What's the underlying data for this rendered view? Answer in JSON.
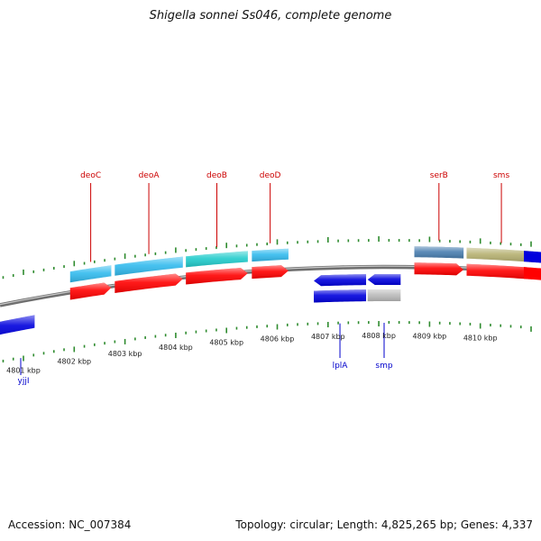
{
  "title": "Shigella sonnei Ss046, complete genome",
  "footer": {
    "accession": "Accession: NC_007384",
    "stats": "Topology: circular; Length: 4,825,265 bp; Genes: 4,337"
  },
  "colors": {
    "backbone": "#8c8c8c",
    "tick": "#2e8b2e",
    "cds_forward": "#ff0000",
    "cds_reverse": "#0000dd",
    "label_top": "#cc0000",
    "label_bottom": "#0000cc"
  },
  "scale": {
    "unit": "kbp",
    "labels": [
      "4801 kbp",
      "4802 kbp",
      "4803 kbp",
      "4804 kbp",
      "4805 kbp",
      "4806 kbp",
      "4807 kbp",
      "4808 kbp",
      "4809 kbp",
      "4810 kbp"
    ]
  },
  "genes_top": [
    {
      "name": "deoC",
      "start_kbp": 4801.92,
      "end_kbp": 4802.73,
      "feature_color": "#33bbee",
      "cds_color": "#ff0000"
    },
    {
      "name": "deoA",
      "start_kbp": 4802.8,
      "end_kbp": 4804.14,
      "feature_color": "#33bbee",
      "cds_color": "#ff0000"
    },
    {
      "name": "deoB",
      "start_kbp": 4804.2,
      "end_kbp": 4805.42,
      "feature_color": "#22cccc",
      "cds_color": "#ff0000"
    },
    {
      "name": "deoD",
      "start_kbp": 4805.5,
      "end_kbp": 4806.22,
      "feature_color": "#33bbee",
      "cds_color": "#ff0000"
    },
    {
      "name": "serB",
      "start_kbp": 4808.7,
      "end_kbp": 4809.67,
      "feature_color": "#4a7fb0",
      "cds_color": "#ff0000"
    },
    {
      "name": "sms",
      "start_kbp": 4809.73,
      "end_kbp": 4811.1,
      "feature_color": "#b5b070",
      "cds_color": "#ff0000"
    }
  ],
  "genes_bottom": [
    {
      "name": "yjjI",
      "start_kbp": 4799.9,
      "end_kbp": 4801.22,
      "feature_color": "#0000dd",
      "cds_color": "#0000dd"
    },
    {
      "name": "lplA",
      "start_kbp": 4806.72,
      "end_kbp": 4807.75,
      "feature_color": "#0000dd",
      "cds_color": "#0000dd"
    },
    {
      "name": "smp",
      "start_kbp": 4807.78,
      "end_kbp": 4808.43,
      "feature_color": "#bbbbbb",
      "cds_color": "#0000dd"
    }
  ],
  "partial_top_right": {
    "feature_color": "#0000dd",
    "cds_color": "#ff0000"
  }
}
